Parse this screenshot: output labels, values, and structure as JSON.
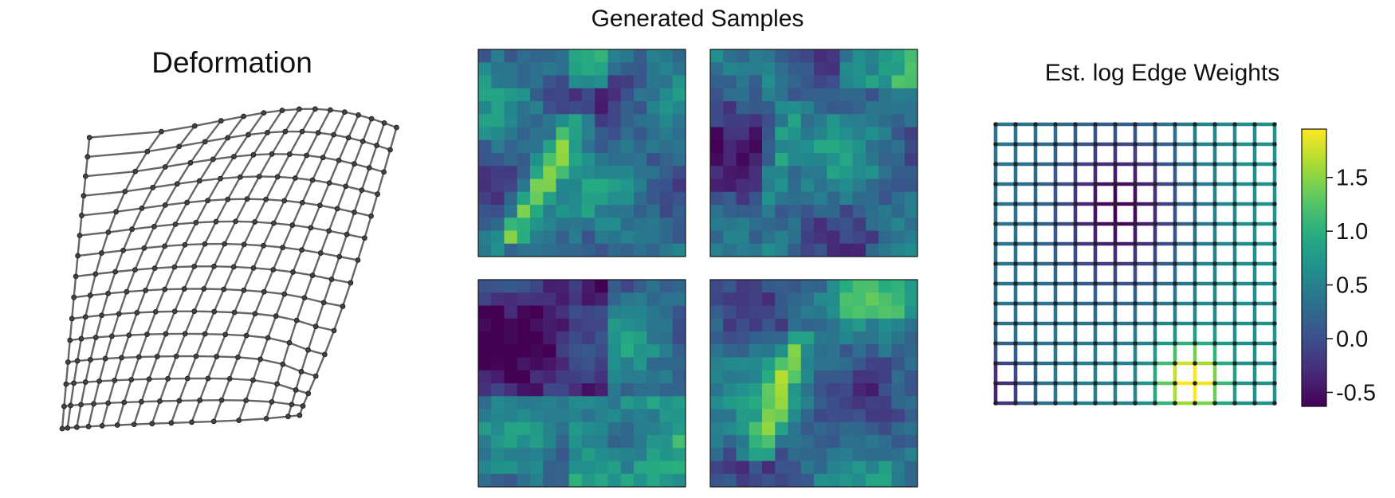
{
  "deformation": {
    "title": "Deformation",
    "grid_rows": 15,
    "grid_cols": 15,
    "edge_color": "#666666",
    "node_color": "#222222"
  },
  "samples": {
    "title": "Generated Samples",
    "resolution": 16,
    "count": 4,
    "colormap": "viridis"
  },
  "edge_weights": {
    "title": "Est. log Edge Weights",
    "grid_nodes": 15,
    "colormap": "viridis"
  },
  "chart_data": [
    {
      "type": "scatter",
      "title": "Deformation",
      "description_of_points": "15x15 lattice of nodes joined to their grid neighbours, spatially deformed",
      "corner_positions": {
        "top_left": [
          0.08,
          0.13
        ],
        "top_right": [
          0.98,
          0.1
        ],
        "bottom_left": [
          0.0,
          1.0
        ],
        "bottom_right": [
          0.72,
          0.97
        ]
      }
    },
    {
      "type": "heatmap",
      "title": "Generated Samples",
      "panels": 4,
      "rows": 16,
      "cols": 16,
      "colormap": "viridis",
      "value_range": [
        -0.6,
        1.95
      ]
    },
    {
      "type": "heatmap",
      "title": "Est. log Edge Weights",
      "description": "Lattice edges colored by estimated log edge weight; low values in the upper-middle region, high values near the bottom-center",
      "colorbar": {
        "ticks": [
          "-0.5",
          "0.0",
          "0.5",
          "1.0",
          "1.5"
        ],
        "tick_values": [
          -0.5,
          0.0,
          0.5,
          1.0,
          1.5
        ],
        "range": [
          -0.63,
          1.95
        ],
        "colormap": "viridis"
      }
    }
  ]
}
